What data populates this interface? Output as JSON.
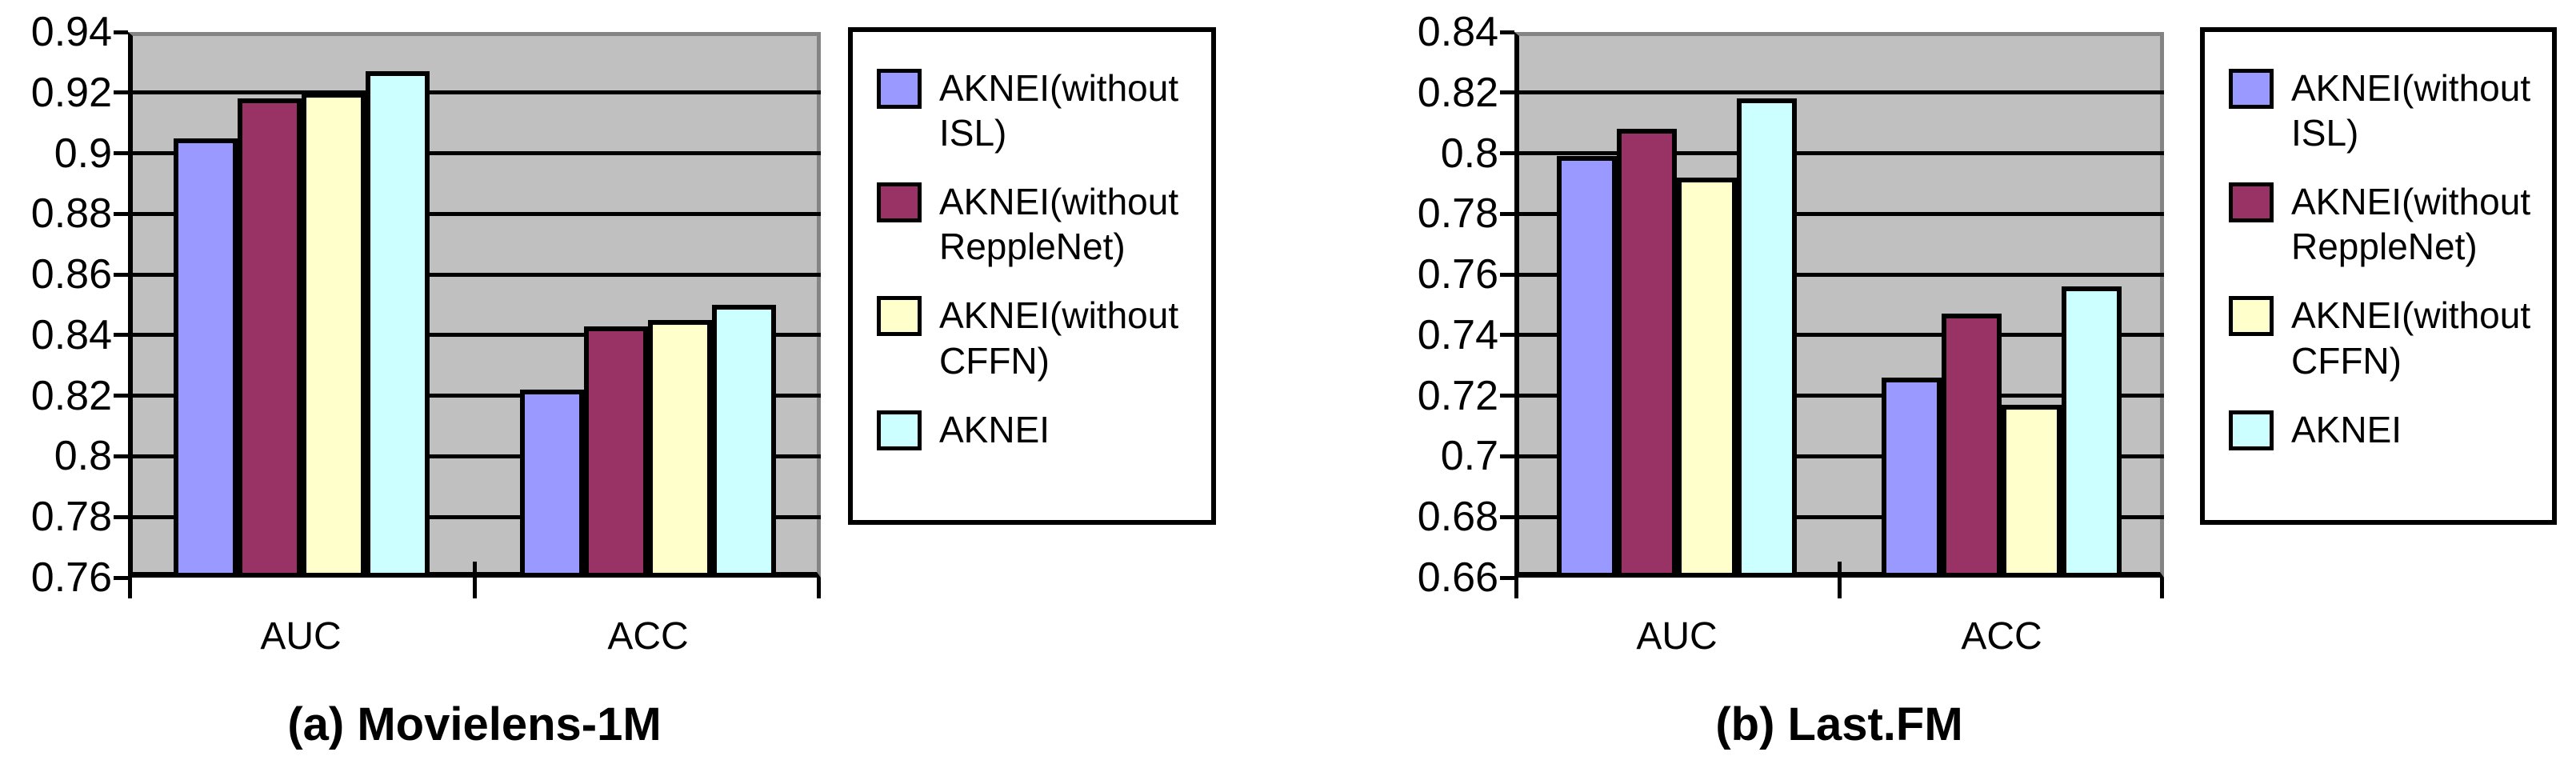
{
  "page": {
    "background": "#FFFFFF",
    "plot_background": "#C0C0C0",
    "grid_color": "#000000"
  },
  "chart_data": [
    {
      "type": "bar",
      "caption": "(a) Movielens-1M",
      "categories": [
        "AUC",
        "ACC"
      ],
      "ylim": [
        0.76,
        0.94
      ],
      "ytick_step": 0.02,
      "ytick_labels": [
        "0.94",
        "0.92",
        "0.9",
        "0.88",
        "0.86",
        "0.84",
        "0.82",
        "0.8",
        "0.78",
        "0.76"
      ],
      "grid": true,
      "legend_position": "right",
      "plot_background": "#C0C0C0",
      "series": [
        {
          "name": "AKNEI(without ISL)",
          "color": "#9999FF",
          "values": [
            0.905,
            0.822
          ]
        },
        {
          "name": "AKNEI(without ReppleNet)",
          "color": "#993366",
          "values": [
            0.918,
            0.843
          ]
        },
        {
          "name": "AKNEI(without CFFN)",
          "color": "#FFFFCC",
          "values": [
            0.92,
            0.845
          ]
        },
        {
          "name": "AKNEI",
          "color": "#CCFFFF",
          "values": [
            0.927,
            0.85
          ]
        }
      ]
    },
    {
      "type": "bar",
      "caption": "(b) Last.FM",
      "categories": [
        "AUC",
        "ACC"
      ],
      "ylim": [
        0.66,
        0.84
      ],
      "ytick_step": 0.02,
      "ytick_labels": [
        "0.84",
        "0.82",
        "0.8",
        "0.78",
        "0.76",
        "0.74",
        "0.72",
        "0.7",
        "0.68",
        "0.66"
      ],
      "grid": true,
      "legend_position": "right",
      "plot_background": "#C0C0C0",
      "series": [
        {
          "name": "AKNEI(without ISL)",
          "color": "#9999FF",
          "values": [
            0.799,
            0.726
          ]
        },
        {
          "name": "AKNEI(without ReppleNet)",
          "color": "#993366",
          "values": [
            0.808,
            0.747
          ]
        },
        {
          "name": "AKNEI(without CFFN)",
          "color": "#FFFFCC",
          "values": [
            0.792,
            0.717
          ]
        },
        {
          "name": "AKNEI",
          "color": "#CCFFFF",
          "values": [
            0.818,
            0.756
          ]
        }
      ]
    }
  ]
}
